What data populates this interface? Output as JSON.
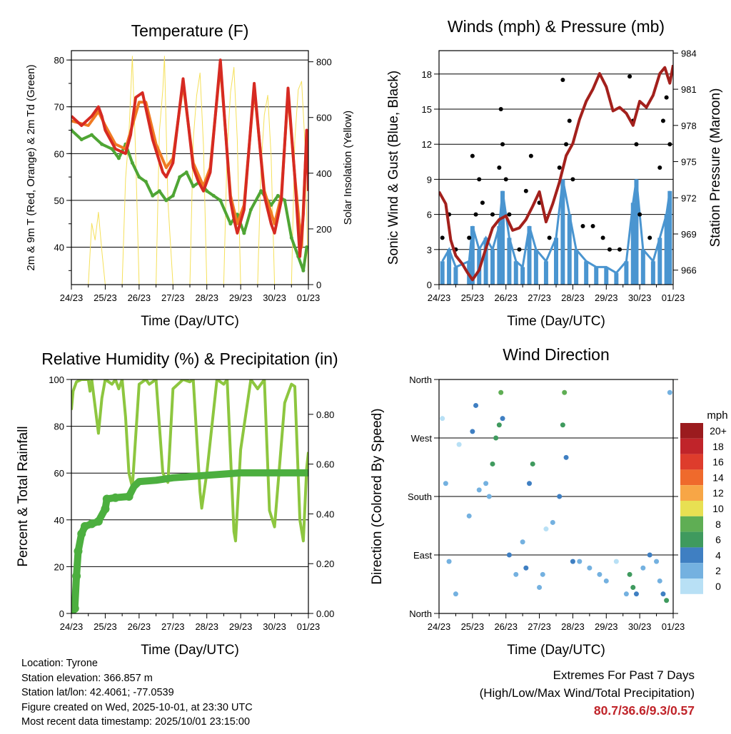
{
  "domain_note": "Weather station meteogram",
  "axis_common": {
    "x_label": "Time (Day/UTC)",
    "x_ticks": [
      "24/23",
      "25/23",
      "26/23",
      "27/23",
      "28/23",
      "29/23",
      "30/23",
      "01/23"
    ]
  },
  "chart_data": [
    {
      "id": "temperature",
      "type": "line",
      "title": "Temperature (F)",
      "ylabel": "2m & 9m T (Red, Orange) & 2m Td (Green)",
      "y2label": "Solar Insolation (Yellow)",
      "xlabel": "Time (Day/UTC)",
      "ylim": [
        32,
        82
      ],
      "y_ticks": [
        40,
        50,
        60,
        70,
        80
      ],
      "y_tick_labels": [
        "40",
        "50",
        "60",
        "70",
        "80"
      ],
      "y2lim": [
        0,
        840
      ],
      "y2_ticks": [
        0,
        200,
        400,
        600,
        800
      ],
      "y2_tick_labels": [
        "0",
        "200",
        "400",
        "600",
        "800"
      ],
      "xlim": [
        0,
        7
      ],
      "series": [
        {
          "name": "2m T",
          "color": "#d62a22",
          "x": [
            0,
            0.3,
            0.6,
            0.8,
            0.9,
            1.0,
            1.3,
            1.6,
            1.75,
            1.9,
            2.1,
            2.4,
            2.7,
            2.8,
            3.0,
            3.3,
            3.6,
            3.75,
            3.9,
            4.1,
            4.4,
            4.7,
            4.8,
            4.9,
            5.1,
            5.4,
            5.7,
            5.9,
            6.0,
            6.2,
            6.4,
            6.6,
            6.75,
            6.85,
            6.95,
            7.0
          ],
          "values": [
            68,
            66,
            68,
            70,
            68,
            65,
            61,
            60,
            64,
            72,
            73,
            63,
            56,
            55,
            58,
            76,
            57,
            54,
            52,
            56,
            80,
            50,
            46,
            43,
            48,
            75,
            51,
            45,
            43,
            50,
            74,
            55,
            38,
            47,
            65,
            52
          ]
        },
        {
          "name": "9m T",
          "color": "#f07a22",
          "x": [
            0,
            0.5,
            0.8,
            1.0,
            1.3,
            1.6,
            1.8,
            2.0,
            2.2,
            2.5,
            2.8,
            3.0,
            3.3,
            3.6,
            3.9,
            4.1,
            4.4,
            4.7,
            4.9,
            5.1,
            5.4,
            5.7,
            6.0,
            6.2,
            6.4,
            6.6,
            6.8,
            6.95
          ],
          "values": [
            67,
            66,
            69,
            66,
            62,
            61,
            66,
            71,
            71,
            62,
            57,
            59,
            75,
            58,
            53,
            57,
            79,
            51,
            45,
            49,
            74,
            52,
            45,
            51,
            73,
            55,
            40,
            64
          ]
        },
        {
          "name": "2m Td",
          "color": "#4fa534",
          "x": [
            0,
            0.3,
            0.6,
            0.9,
            1.2,
            1.4,
            1.6,
            1.8,
            2.0,
            2.2,
            2.4,
            2.6,
            2.8,
            3.0,
            3.2,
            3.4,
            3.6,
            3.8,
            4.0,
            4.2,
            4.4,
            4.7,
            4.9,
            5.1,
            5.3,
            5.6,
            5.9,
            6.1,
            6.3,
            6.5,
            6.7,
            6.85,
            6.95
          ],
          "values": [
            65,
            63,
            64,
            62,
            61,
            59,
            62,
            58,
            55,
            54,
            51,
            52,
            50,
            51,
            55,
            56,
            53,
            54,
            52,
            51,
            50,
            45,
            47,
            43,
            48,
            52,
            49,
            51,
            50,
            42,
            38,
            35,
            40
          ]
        },
        {
          "name": "Solar Insolation",
          "color": "#f5e05a",
          "axis": "y2",
          "x": [
            0,
            0.5,
            0.6,
            0.7,
            0.8,
            0.9,
            1.0,
            1.5,
            1.6,
            1.7,
            1.8,
            1.9,
            2.0,
            2.5,
            2.6,
            2.7,
            2.75,
            2.85,
            3.0,
            3.5,
            3.6,
            3.7,
            3.8,
            3.9,
            4.0,
            4.5,
            4.6,
            4.7,
            4.8,
            4.9,
            5.0,
            5.5,
            5.6,
            5.7,
            5.8,
            5.9,
            6.0,
            6.5,
            6.6,
            6.7,
            6.8,
            6.9,
            7.0
          ],
          "values": [
            0,
            0,
            220,
            160,
            260,
            120,
            0,
            0,
            380,
            540,
            820,
            460,
            0,
            0,
            550,
            700,
            820,
            300,
            0,
            0,
            520,
            680,
            760,
            500,
            0,
            0,
            480,
            690,
            780,
            520,
            0,
            0,
            420,
            610,
            680,
            460,
            0,
            0,
            520,
            700,
            730,
            500,
            0
          ]
        }
      ]
    },
    {
      "id": "winds",
      "type": "scatter",
      "title": "Winds (mph) & Pressure (mb)",
      "ylabel": "Sonic Wind & Gust (Blue, Black)",
      "y2label": "Station Pressure (Maroon)",
      "xlabel": "Time (Day/UTC)",
      "ylim": [
        0,
        20
      ],
      "y_ticks": [
        0,
        3,
        6,
        9,
        12,
        15,
        18
      ],
      "y_tick_labels": [
        "0",
        "3",
        "6",
        "9",
        "12",
        "15",
        "18"
      ],
      "y2lim": [
        964.8,
        984.2
      ],
      "y2_ticks": [
        966,
        969,
        972,
        975,
        978,
        981,
        984
      ],
      "y2_tick_labels": [
        "966",
        "969",
        "972",
        "975",
        "978",
        "981",
        "984"
      ],
      "xlim": [
        0,
        7
      ],
      "series": [
        {
          "name": "Gust",
          "color": "#000000",
          "x": [
            0.1,
            0.3,
            0.5,
            0.9,
            1.0,
            1.1,
            1.2,
            1.3,
            1.6,
            1.8,
            1.85,
            1.9,
            2.0,
            2.1,
            2.4,
            2.6,
            2.75,
            3.0,
            3.3,
            3.6,
            3.7,
            3.8,
            3.9,
            4.0,
            4.3,
            4.6,
            4.9,
            5.1,
            5.4,
            5.7,
            5.8,
            5.9,
            6.0,
            6.3,
            6.6,
            6.7,
            6.8,
            6.9
          ],
          "values": [
            4,
            6,
            3,
            4,
            11,
            6,
            9,
            7,
            6,
            10,
            15,
            12,
            9,
            6,
            3,
            8,
            11,
            7,
            4,
            10,
            17.5,
            12,
            14,
            9,
            5,
            5,
            4,
            3,
            3,
            17.8,
            14,
            12,
            6,
            4,
            10,
            14,
            16,
            12
          ]
        },
        {
          "name": "Sonic Wind",
          "color": "#4a95d0",
          "x": [
            0.1,
            0.3,
            0.5,
            0.9,
            1.0,
            1.2,
            1.4,
            1.6,
            1.8,
            1.9,
            2.1,
            2.3,
            2.5,
            2.7,
            2.9,
            3.2,
            3.5,
            3.7,
            3.9,
            4.1,
            4.4,
            4.7,
            5.0,
            5.3,
            5.6,
            5.8,
            5.9,
            6.1,
            6.4,
            6.6,
            6.8,
            6.9
          ],
          "values": [
            2,
            3,
            1.5,
            2,
            5,
            3,
            4,
            3,
            5,
            8,
            4,
            2,
            1.5,
            5,
            3,
            2,
            4,
            9,
            6,
            3,
            2,
            1.5,
            1.5,
            1,
            2,
            7,
            9,
            3,
            2,
            4,
            6,
            8
          ]
        },
        {
          "name": "Station Pressure",
          "color": "#a3201c",
          "axis": "y2",
          "x": [
            0,
            0.2,
            0.35,
            0.5,
            0.7,
            0.85,
            1.0,
            1.2,
            1.4,
            1.6,
            1.8,
            2.0,
            2.2,
            2.4,
            2.6,
            2.8,
            3.0,
            3.2,
            3.4,
            3.6,
            3.8,
            4.0,
            4.2,
            4.4,
            4.6,
            4.8,
            5.0,
            5.2,
            5.4,
            5.6,
            5.8,
            6.0,
            6.2,
            6.4,
            6.6,
            6.75,
            6.9,
            7.0
          ],
          "values": [
            972.5,
            971.5,
            968.5,
            967.2,
            966.5,
            965.8,
            965.2,
            966.0,
            967.8,
            969.5,
            970.2,
            970.5,
            969.3,
            969.5,
            970.2,
            971.3,
            972.5,
            970.0,
            971.5,
            973.3,
            975.5,
            976.5,
            978.5,
            980.0,
            981.0,
            982.3,
            981.2,
            979.2,
            979.5,
            979.0,
            978.0,
            980.0,
            979.5,
            980.5,
            982.3,
            982.8,
            981.5,
            983.0
          ]
        }
      ]
    },
    {
      "id": "humidity",
      "type": "line",
      "title": "Relative Humidity (%) & Precipitation (in)",
      "ylabel": "Percent & Total Rainfall",
      "xlabel": "Time (Day/UTC)",
      "ylim": [
        0,
        100
      ],
      "y_ticks": [
        0,
        20,
        40,
        60,
        80,
        100
      ],
      "y_tick_labels": [
        "0",
        "20",
        "40",
        "60",
        "80",
        "100"
      ],
      "y2lim": [
        0,
        0.94
      ],
      "y2_ticks": [
        0,
        0.2,
        0.4,
        0.6,
        0.8
      ],
      "y2_tick_labels": [
        "0.00",
        "0.20",
        "0.40",
        "0.60",
        "0.80"
      ],
      "xlim": [
        0,
        7
      ],
      "series": [
        {
          "name": "Relative Humidity",
          "color": "#8dc63f",
          "x": [
            0,
            0.05,
            0.15,
            0.3,
            0.5,
            0.55,
            0.6,
            0.8,
            0.9,
            1.0,
            1.1,
            1.2,
            1.3,
            1.4,
            1.5,
            1.6,
            1.7,
            1.8,
            2.0,
            2.2,
            2.3,
            2.5,
            2.7,
            2.85,
            3.0,
            3.3,
            3.5,
            3.6,
            3.8,
            3.85,
            4.0,
            4.3,
            4.5,
            4.6,
            4.8,
            4.85,
            5.0,
            5.3,
            5.5,
            5.7,
            5.85,
            6.0,
            6.3,
            6.5,
            6.6,
            6.75,
            6.85,
            6.95,
            7.0
          ],
          "values": [
            87,
            95,
            99,
            100,
            100,
            95,
            100,
            77,
            92,
            100,
            99,
            98,
            100,
            96,
            100,
            84,
            60,
            54,
            98,
            100,
            98,
            100,
            60,
            56,
            96,
            100,
            99,
            100,
            52,
            45,
            60,
            100,
            98,
            100,
            35,
            31,
            70,
            100,
            96,
            100,
            44,
            37,
            90,
            98,
            97,
            40,
            31,
            62,
            69
          ]
        },
        {
          "name": "Total Precipitation",
          "color": "#4caf3f",
          "axis": "y2",
          "x": [
            0,
            0.1,
            0.15,
            0.2,
            0.3,
            0.4,
            0.6,
            0.8,
            1.0,
            1.05,
            1.3,
            1.7,
            1.85,
            2.0,
            2.5,
            3.0,
            3.5,
            4.0,
            4.5,
            5.0,
            5.5,
            6.0,
            6.5,
            7.0
          ],
          "values": [
            0,
            0.02,
            0.15,
            0.25,
            0.32,
            0.35,
            0.36,
            0.37,
            0.42,
            0.46,
            0.465,
            0.47,
            0.51,
            0.53,
            0.535,
            0.545,
            0.55,
            0.555,
            0.56,
            0.565,
            0.565,
            0.565,
            0.565,
            0.565
          ]
        }
      ]
    },
    {
      "id": "winddir",
      "type": "scatter",
      "title": "Wind Direction",
      "ylabel": "Direction (Colored By Speed)",
      "xlabel": "Time (Day/UTC)",
      "ylim": [
        0,
        360
      ],
      "y_ticks": [
        0,
        90,
        180,
        270,
        360
      ],
      "y_tick_labels": [
        "North",
        "East",
        "South",
        "West",
        "North"
      ],
      "xlim": [
        0,
        7
      ],
      "colorbar_title": "mph",
      "colorbar_labels": [
        "20+",
        "18",
        "16",
        "14",
        "12",
        "10",
        "8",
        "6",
        "4",
        "2",
        "0"
      ],
      "colorbar_colors": [
        "#9b1b1e",
        "#c0242a",
        "#de3c2c",
        "#ef6a2c",
        "#f7a646",
        "#e8e052",
        "#5fae54",
        "#3f9a5e",
        "#3f7fc2",
        "#74b1e0",
        "#b8e0f5"
      ],
      "series": [
        {
          "name": "Direction",
          "x": [
            0.1,
            0.2,
            0.3,
            0.5,
            0.6,
            0.9,
            1.0,
            1.1,
            1.2,
            1.4,
            1.5,
            1.6,
            1.7,
            1.8,
            1.85,
            1.9,
            2.1,
            2.3,
            2.5,
            2.6,
            2.7,
            2.8,
            3.0,
            3.1,
            3.2,
            3.4,
            3.6,
            3.7,
            3.75,
            3.8,
            4.0,
            4.2,
            4.5,
            4.8,
            5.0,
            5.3,
            5.6,
            5.7,
            5.8,
            5.9,
            6.1,
            6.3,
            6.5,
            6.6,
            6.7,
            6.8,
            6.9
          ],
          "speeds": [
            1,
            2,
            3,
            2,
            1,
            2,
            4,
            4,
            3,
            2,
            3,
            6,
            6,
            7,
            8,
            5,
            4,
            3,
            2,
            4,
            5,
            6,
            3,
            2,
            1,
            2,
            4,
            7,
            8,
            5,
            4,
            3,
            3,
            2,
            2,
            1,
            2,
            6,
            7,
            5,
            3,
            4,
            2,
            3,
            5,
            6,
            3
          ],
          "values": [
            300,
            200,
            80,
            30,
            260,
            150,
            280,
            320,
            190,
            200,
            180,
            230,
            270,
            290,
            340,
            300,
            90,
            60,
            110,
            70,
            200,
            230,
            40,
            60,
            130,
            140,
            180,
            290,
            340,
            240,
            80,
            80,
            70,
            60,
            50,
            80,
            30,
            60,
            40,
            30,
            70,
            90,
            80,
            50,
            30,
            20,
            340
          ]
        }
      ]
    }
  ],
  "info": {
    "location": "Location: Tyrone",
    "elevation": "Station elevation: 366.857 m",
    "latlon": "Station lat/lon: 42.4061; -77.0539",
    "created": "Figure created on Wed, 2025-10-01, at 23:30 UTC",
    "recent": "Most recent data timestamp: 2025/10/01 23:15:00"
  },
  "extremes": {
    "title": "Extremes For Past 7 Days",
    "subtitle": "(High/Low/Max Wind/Total Precipitation)",
    "values": "80.7/36.6/9.3/0.57",
    "color": "#c0242a"
  }
}
